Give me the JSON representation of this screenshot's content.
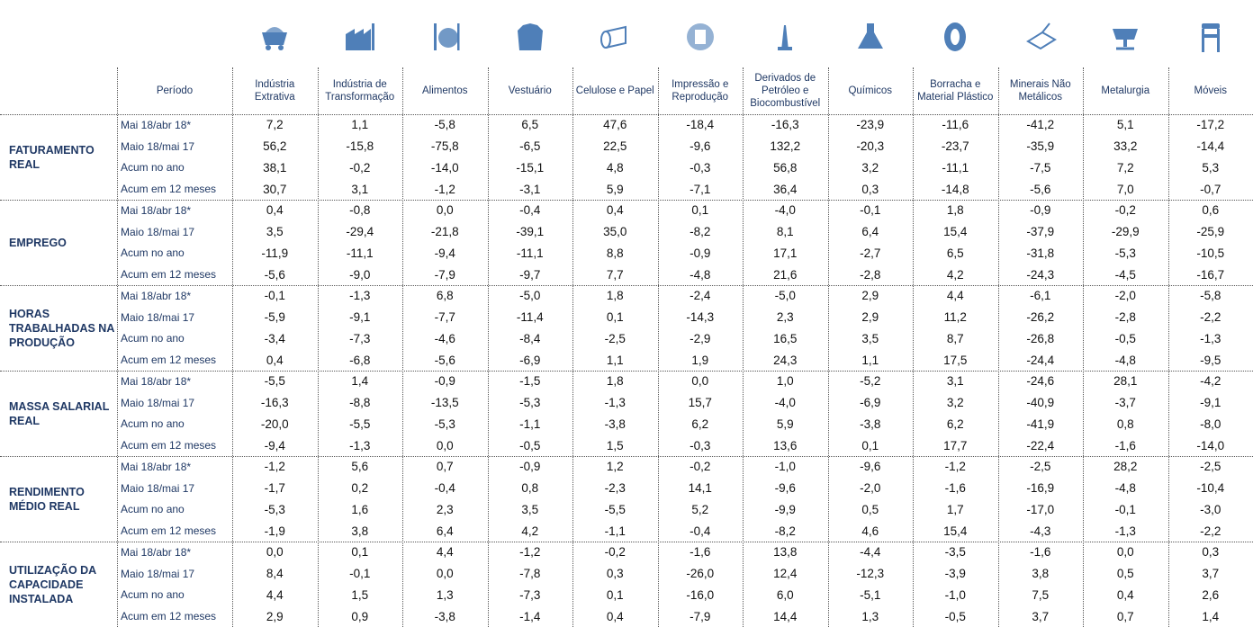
{
  "table": {
    "header": {
      "period": "Período",
      "sectors": [
        "Indústria Extrativa",
        "Indústria de Transformação",
        "Alimentos",
        "Vestuário",
        "Celulose e Papel",
        "Impressão e Reprodução",
        "Derivados de Petróleo e Biocombustível",
        "Químicos",
        "Borracha e Material Plástico",
        "Minerais Não Metálicos",
        "Metalurgia",
        "Móveis"
      ]
    },
    "groups": [
      {
        "label": "FATURAMENTO REAL",
        "rows": [
          {
            "period": "Mai 18/abr 18*",
            "values": [
              "7,2",
              "1,1",
              "-5,8",
              "6,5",
              "47,6",
              "-18,4",
              "-16,3",
              "-23,9",
              "-11,6",
              "-41,2",
              "5,1",
              "-17,2"
            ]
          },
          {
            "period": "Maio 18/mai 17",
            "values": [
              "56,2",
              "-15,8",
              "-75,8",
              "-6,5",
              "22,5",
              "-9,6",
              "132,2",
              "-20,3",
              "-23,7",
              "-35,9",
              "33,2",
              "-14,4"
            ]
          },
          {
            "period": "Acum no ano",
            "values": [
              "38,1",
              "-0,2",
              "-14,0",
              "-15,1",
              "4,8",
              "-0,3",
              "56,8",
              "3,2",
              "-11,1",
              "-7,5",
              "7,2",
              "5,3"
            ]
          },
          {
            "period": "Acum em 12 meses",
            "values": [
              "30,7",
              "3,1",
              "-1,2",
              "-3,1",
              "5,9",
              "-7,1",
              "36,4",
              "0,3",
              "-14,8",
              "-5,6",
              "7,0",
              "-0,7"
            ]
          }
        ]
      },
      {
        "label": "EMPREGO",
        "rows": [
          {
            "period": "Mai 18/abr 18*",
            "values": [
              "0,4",
              "-0,8",
              "0,0",
              "-0,4",
              "0,4",
              "0,1",
              "-4,0",
              "-0,1",
              "1,8",
              "-0,9",
              "-0,2",
              "0,6"
            ]
          },
          {
            "period": "Maio 18/mai 17",
            "values": [
              "3,5",
              "-29,4",
              "-21,8",
              "-39,1",
              "35,0",
              "-8,2",
              "8,1",
              "6,4",
              "15,4",
              "-37,9",
              "-29,9",
              "-25,9"
            ]
          },
          {
            "period": "Acum no ano",
            "values": [
              "-11,9",
              "-11,1",
              "-9,4",
              "-11,1",
              "8,8",
              "-0,9",
              "17,1",
              "-2,7",
              "6,5",
              "-31,8",
              "-5,3",
              "-10,5"
            ]
          },
          {
            "period": "Acum em 12 meses",
            "values": [
              "-5,6",
              "-9,0",
              "-7,9",
              "-9,7",
              "7,7",
              "-4,8",
              "21,6",
              "-2,8",
              "4,2",
              "-24,3",
              "-4,5",
              "-16,7"
            ]
          }
        ]
      },
      {
        "label": "HORAS TRABALHADAS NA PRODUÇÃO",
        "rows": [
          {
            "period": "Mai 18/abr 18*",
            "values": [
              "-0,1",
              "-1,3",
              "6,8",
              "-5,0",
              "1,8",
              "-2,4",
              "-5,0",
              "2,9",
              "4,4",
              "-6,1",
              "-2,0",
              "-5,8"
            ]
          },
          {
            "period": "Maio 18/mai 17",
            "values": [
              "-5,9",
              "-9,1",
              "-7,7",
              "-11,4",
              "0,1",
              "-14,3",
              "2,3",
              "2,9",
              "11,2",
              "-26,2",
              "-2,8",
              "-2,2"
            ]
          },
          {
            "period": "Acum no ano",
            "values": [
              "-3,4",
              "-7,3",
              "-4,6",
              "-8,4",
              "-2,5",
              "-2,9",
              "16,5",
              "3,5",
              "8,7",
              "-26,8",
              "-0,5",
              "-1,3"
            ]
          },
          {
            "period": "Acum em 12 meses",
            "values": [
              "0,4",
              "-6,8",
              "-5,6",
              "-6,9",
              "1,1",
              "1,9",
              "24,3",
              "1,1",
              "17,5",
              "-24,4",
              "-4,8",
              "-9,5"
            ]
          }
        ]
      },
      {
        "label": "MASSA SALARIAL REAL",
        "rows": [
          {
            "period": "Mai 18/abr 18*",
            "values": [
              "-5,5",
              "1,4",
              "-0,9",
              "-1,5",
              "1,8",
              "0,0",
              "1,0",
              "-5,2",
              "3,1",
              "-24,6",
              "28,1",
              "-4,2"
            ]
          },
          {
            "period": "Maio 18/mai 17",
            "values": [
              "-16,3",
              "-8,8",
              "-13,5",
              "-5,3",
              "-1,3",
              "15,7",
              "-4,0",
              "-6,9",
              "3,2",
              "-40,9",
              "-3,7",
              "-9,1"
            ]
          },
          {
            "period": "Acum no ano",
            "values": [
              "-20,0",
              "-5,5",
              "-5,3",
              "-1,1",
              "-3,8",
              "6,2",
              "5,9",
              "-3,8",
              "6,2",
              "-41,9",
              "0,8",
              "-8,0"
            ]
          },
          {
            "period": "Acum em 12 meses",
            "values": [
              "-9,4",
              "-1,3",
              "0,0",
              "-0,5",
              "1,5",
              "-0,3",
              "13,6",
              "0,1",
              "17,7",
              "-22,4",
              "-1,6",
              "-14,0"
            ]
          }
        ]
      },
      {
        "label": "RENDIMENTO MÉDIO REAL",
        "rows": [
          {
            "period": "Mai 18/abr 18*",
            "values": [
              "-1,2",
              "5,6",
              "0,7",
              "-0,9",
              "1,2",
              "-0,2",
              "-1,0",
              "-9,6",
              "-1,2",
              "-2,5",
              "28,2",
              "-2,5"
            ]
          },
          {
            "period": "Maio 18/mai 17",
            "values": [
              "-1,7",
              "0,2",
              "-0,4",
              "0,8",
              "-2,3",
              "14,1",
              "-9,6",
              "-2,0",
              "-1,6",
              "-16,9",
              "-4,8",
              "-10,4"
            ]
          },
          {
            "period": "Acum no ano",
            "values": [
              "-5,3",
              "1,6",
              "2,3",
              "3,5",
              "-5,5",
              "5,2",
              "-9,9",
              "0,5",
              "1,7",
              "-17,0",
              "-0,1",
              "-3,0"
            ]
          },
          {
            "period": "Acum em 12 meses",
            "values": [
              "-1,9",
              "3,8",
              "6,4",
              "4,2",
              "-1,1",
              "-0,4",
              "-8,2",
              "4,6",
              "15,4",
              "-4,3",
              "-1,3",
              "-2,2"
            ]
          }
        ]
      },
      {
        "label": "UTILIZAÇÃO DA CAPACIDADE INSTALADA",
        "rows": [
          {
            "period": "Mai 18/abr 18*",
            "values": [
              "0,0",
              "0,1",
              "4,4",
              "-1,2",
              "-0,2",
              "-1,6",
              "13,8",
              "-4,4",
              "-3,5",
              "-1,6",
              "0,0",
              "0,3"
            ]
          },
          {
            "period": "Maio 18/mai 17",
            "values": [
              "8,4",
              "-0,1",
              "0,0",
              "-7,8",
              "0,3",
              "-26,0",
              "12,4",
              "-12,3",
              "-3,9",
              "3,8",
              "0,5",
              "3,7"
            ]
          },
          {
            "period": "Acum no ano",
            "values": [
              "4,4",
              "1,5",
              "1,3",
              "-7,3",
              "0,1",
              "-16,0",
              "6,0",
              "-5,1",
              "-1,0",
              "7,5",
              "0,4",
              "2,6"
            ]
          },
          {
            "period": "Acum em 12 meses",
            "values": [
              "2,9",
              "0,9",
              "-3,8",
              "-1,4",
              "0,4",
              "-7,9",
              "14,4",
              "1,3",
              "-0,5",
              "3,7",
              "0,7",
              "1,4"
            ]
          }
        ]
      }
    ]
  }
}
